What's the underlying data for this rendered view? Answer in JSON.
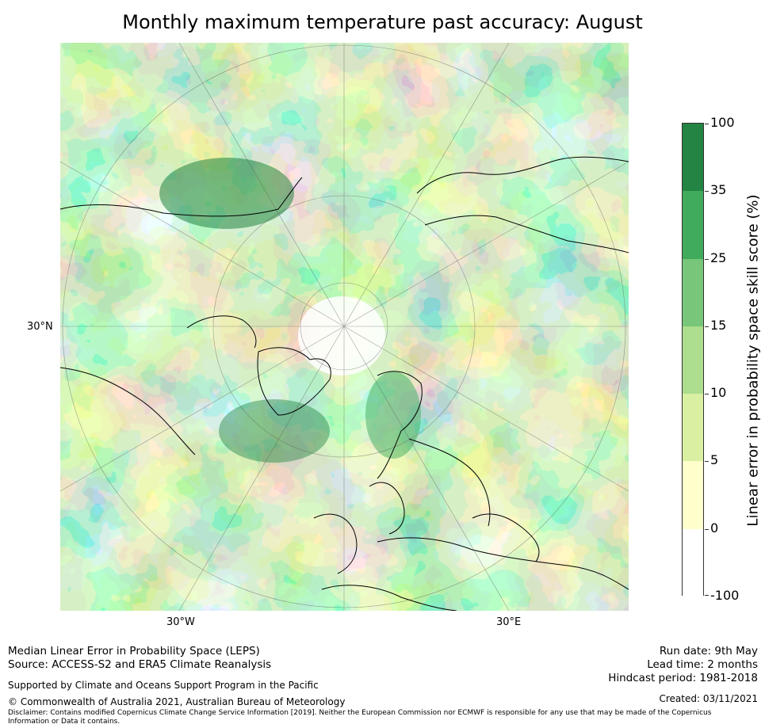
{
  "title": "Monthly maximum temperature past accuracy: August",
  "map": {
    "projection": "north polar stereographic",
    "gridline_labels": {
      "lat": "30°N",
      "lon_west": "30°W",
      "lon_east": "30°E"
    }
  },
  "colorbar": {
    "label": "Linear error in probability space skill score (%)",
    "ticks": [
      "100",
      "35",
      "25",
      "15",
      "10",
      "5",
      "0",
      "-100"
    ],
    "bins": [
      {
        "from": "35",
        "to": "100",
        "color": "#238443"
      },
      {
        "from": "25",
        "to": "35",
        "color": "#41ab5d"
      },
      {
        "from": "15",
        "to": "25",
        "color": "#78c679"
      },
      {
        "from": "10",
        "to": "15",
        "color": "#addd8e"
      },
      {
        "from": "5",
        "to": "10",
        "color": "#d9f0a3"
      },
      {
        "from": "0",
        "to": "5",
        "color": "#ffffcc"
      },
      {
        "from": "-100",
        "to": "0",
        "color": "#ffffff"
      }
    ]
  },
  "footer": {
    "line1": "Median Linear Error in Probability Space (LEPS)",
    "line2": "Source: ACCESS-S2 and ERA5 Climate Reanalysis",
    "support": "Supported by Climate and Oceans Support Program in the Pacific",
    "copyright": "© Commonwealth of Australia 2021, Australian Bureau of Meteorology",
    "disclaimer": "Disclaimer: Contains modified Copernicus Climate Change Service Information [2019]. Neither the European Commission nor ECMWF is responsible for any use that may be made of the Copernicus Information or Data it contains.",
    "run_date": "Run date: 9th May",
    "lead_time": "Lead time: 2 months",
    "hindcast": "Hindcast period: 1981-2018",
    "created": "Created: 03/11/2021"
  }
}
